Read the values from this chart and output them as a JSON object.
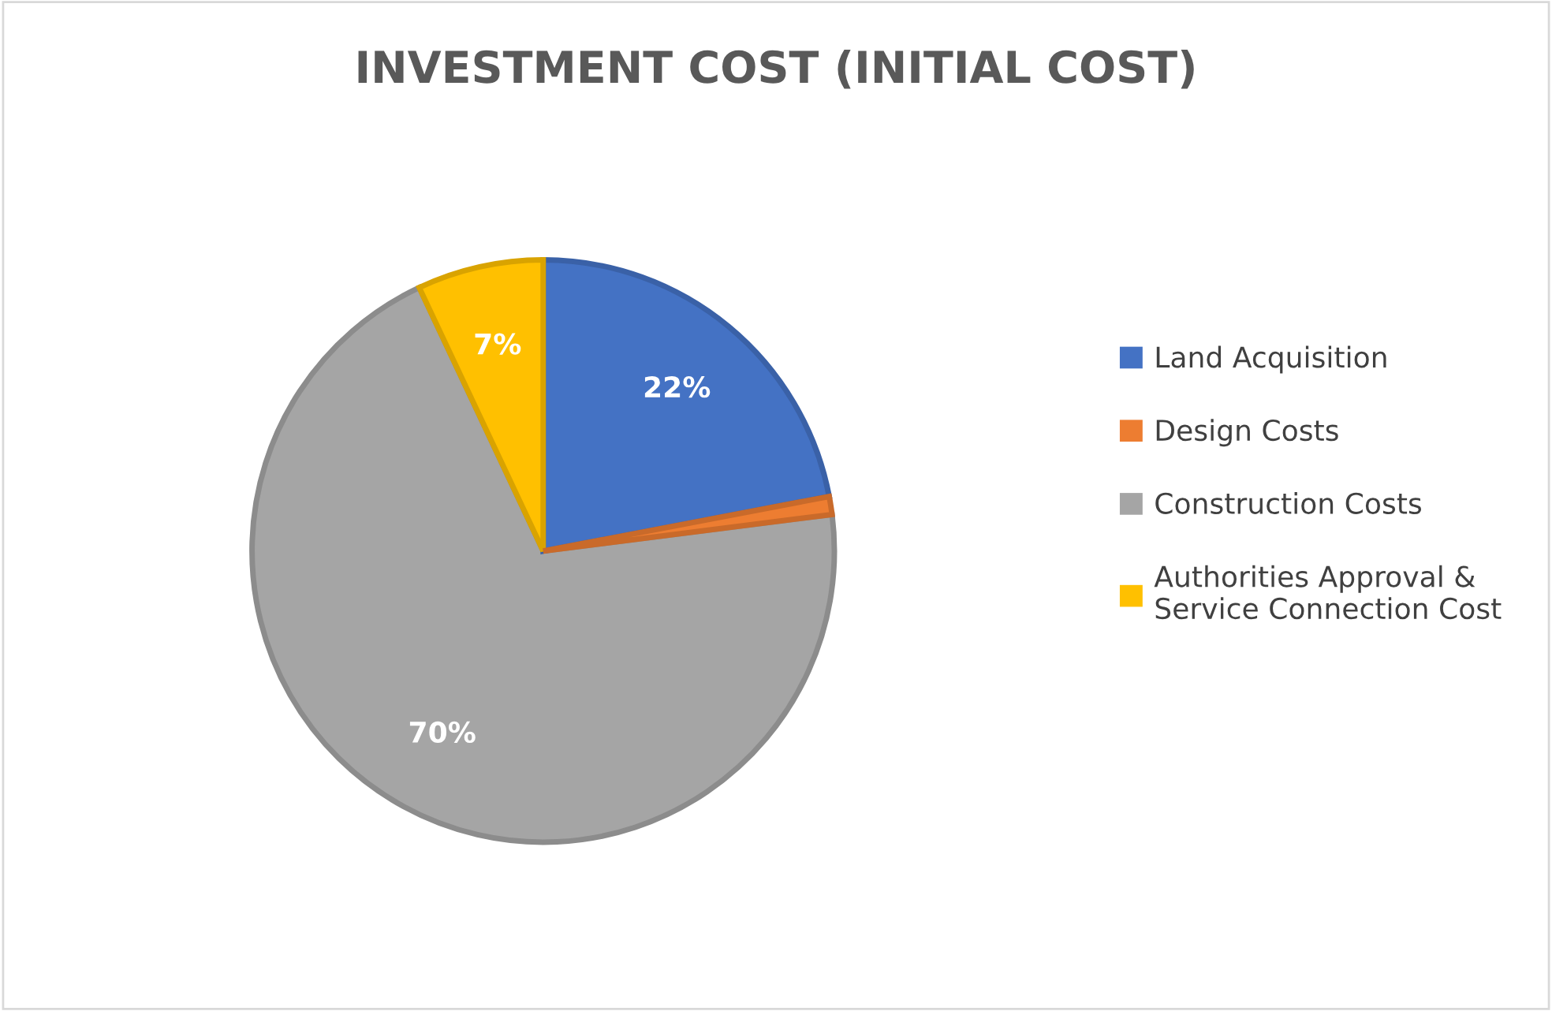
{
  "chart_data": {
    "type": "pie",
    "title": "INVESTMENT COST (INITIAL COST)",
    "categories": [
      "Land Acquisition",
      "Design Costs",
      "Construction Costs",
      "Authorities Approval &\nService Connection Cost"
    ],
    "values": [
      22,
      1,
      70,
      7
    ],
    "colors": [
      "#4472c4",
      "#ed7d31",
      "#a5a5a5",
      "#ffc000"
    ],
    "value_labels": [
      "22%",
      null,
      "70%",
      "7%"
    ],
    "legend": "right"
  }
}
